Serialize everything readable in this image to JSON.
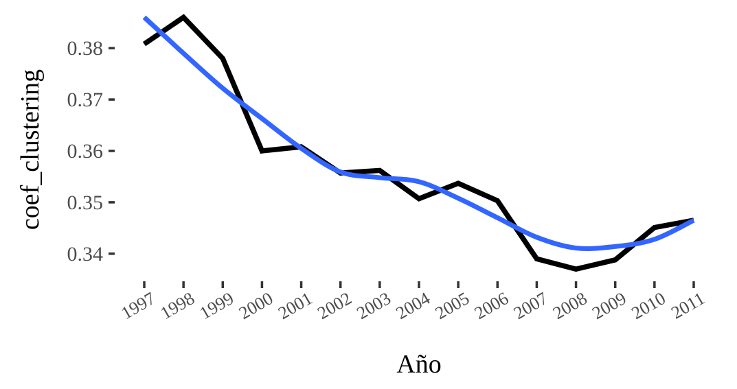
{
  "chart_data": {
    "type": "line",
    "title": "",
    "xlabel": "Año",
    "ylabel": "coef_clustering",
    "categories": [
      "1997",
      "1998",
      "1999",
      "2000",
      "2001",
      "2002",
      "2003",
      "2004",
      "2005",
      "2006",
      "2007",
      "2008",
      "2009",
      "2010",
      "2011"
    ],
    "x": [
      1997,
      1998,
      1999,
      2000,
      2001,
      2002,
      2003,
      2004,
      2005,
      2006,
      2007,
      2008,
      2009,
      2010,
      2011
    ],
    "yticks": [
      0.34,
      0.35,
      0.36,
      0.37,
      0.38
    ],
    "ytick_labels": [
      "0.34",
      "0.35",
      "0.36",
      "0.37",
      "0.38"
    ],
    "ylim": [
      0.3365,
      0.3875
    ],
    "xlim": [
      1997,
      2011
    ],
    "grid": false,
    "series": [
      {
        "color": "#000000",
        "style": "line",
        "values": [
          0.3808,
          0.386,
          0.378,
          0.36,
          0.3608,
          0.3557,
          0.3562,
          0.3507,
          0.3537,
          0.3503,
          0.339,
          0.337,
          0.3388,
          0.3451,
          0.3465
        ]
      },
      {
        "color": "#3366FF",
        "style": "smooth",
        "values": [
          0.386,
          0.379,
          0.3722,
          0.3663,
          0.3605,
          0.3559,
          0.3548,
          0.354,
          0.3508,
          0.347,
          0.3432,
          0.3411,
          0.3414,
          0.3428,
          0.3465
        ]
      }
    ]
  }
}
